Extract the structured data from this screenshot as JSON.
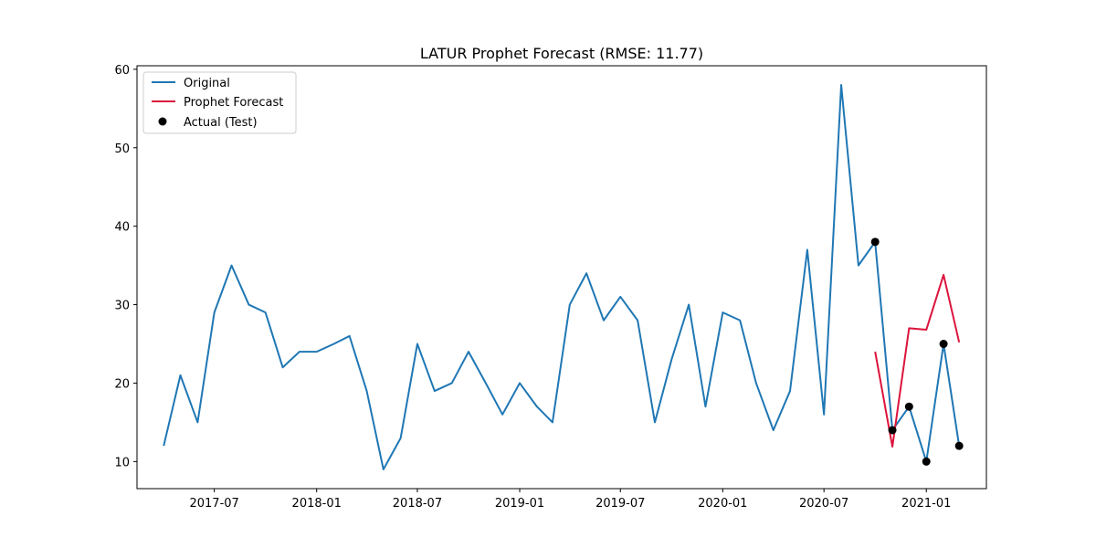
{
  "chart_data": {
    "type": "line",
    "title": "LATUR Prophet Forecast (RMSE: 11.77)",
    "xlabel": "",
    "ylabel": "",
    "xlim": [
      "2017-02-12",
      "2021-04-19"
    ],
    "ylim": [
      6.55,
      60.45
    ],
    "x_ticks": [
      "2017-07",
      "2018-01",
      "2018-07",
      "2019-01",
      "2019-07",
      "2020-01",
      "2020-07",
      "2021-01"
    ],
    "x_tick_dates": [
      "2017-07-01",
      "2018-01-01",
      "2018-07-01",
      "2019-01-01",
      "2019-07-01",
      "2020-01-01",
      "2020-07-01",
      "2021-01-01"
    ],
    "y_ticks": [
      10,
      20,
      30,
      40,
      50,
      60
    ],
    "grid": false,
    "legend_position": "top-left",
    "series": [
      {
        "name": "Original",
        "kind": "line",
        "color": "#1f77b4",
        "x": [
          "2017-04-01",
          "2017-05-01",
          "2017-06-01",
          "2017-07-01",
          "2017-08-01",
          "2017-09-01",
          "2017-10-01",
          "2017-11-01",
          "2017-12-01",
          "2018-01-01",
          "2018-02-01",
          "2018-03-01",
          "2018-04-01",
          "2018-05-01",
          "2018-06-01",
          "2018-07-01",
          "2018-08-01",
          "2018-09-01",
          "2018-10-01",
          "2018-11-01",
          "2018-12-01",
          "2019-01-01",
          "2019-02-01",
          "2019-03-01",
          "2019-04-01",
          "2019-05-01",
          "2019-06-01",
          "2019-07-01",
          "2019-08-01",
          "2019-09-01",
          "2019-10-01",
          "2019-11-01",
          "2019-12-01",
          "2020-01-01",
          "2020-02-01",
          "2020-03-01",
          "2020-04-01",
          "2020-05-01",
          "2020-06-01",
          "2020-07-01",
          "2020-08-01",
          "2020-09-01",
          "2020-10-01",
          "2020-11-01",
          "2020-12-01",
          "2021-01-01",
          "2021-02-01",
          "2021-03-01"
        ],
        "y": [
          12,
          21,
          15,
          29,
          35,
          30,
          29,
          22,
          24,
          24,
          25,
          26,
          19,
          9,
          13,
          25,
          19,
          20,
          24,
          20,
          16,
          20,
          17,
          15,
          30,
          34,
          28,
          31,
          28,
          15,
          23,
          30,
          17,
          29,
          28,
          20,
          14,
          19,
          37,
          16,
          58,
          35,
          38,
          14,
          17,
          10,
          25,
          12
        ]
      },
      {
        "name": "Prophet Forecast",
        "kind": "line",
        "color": "#dc143c",
        "x": [
          "2020-10-01",
          "2020-11-01",
          "2020-12-01",
          "2021-01-01",
          "2021-02-01",
          "2021-03-01"
        ],
        "y": [
          24.0,
          11.9,
          27.0,
          26.8,
          33.8,
          25.2
        ]
      },
      {
        "name": "Actual (Test)",
        "kind": "scatter",
        "color": "#000000",
        "x": [
          "2020-10-01",
          "2020-11-01",
          "2020-12-01",
          "2021-01-01",
          "2021-02-01",
          "2021-03-01"
        ],
        "y": [
          38,
          14,
          17,
          10,
          25,
          12
        ]
      }
    ]
  }
}
